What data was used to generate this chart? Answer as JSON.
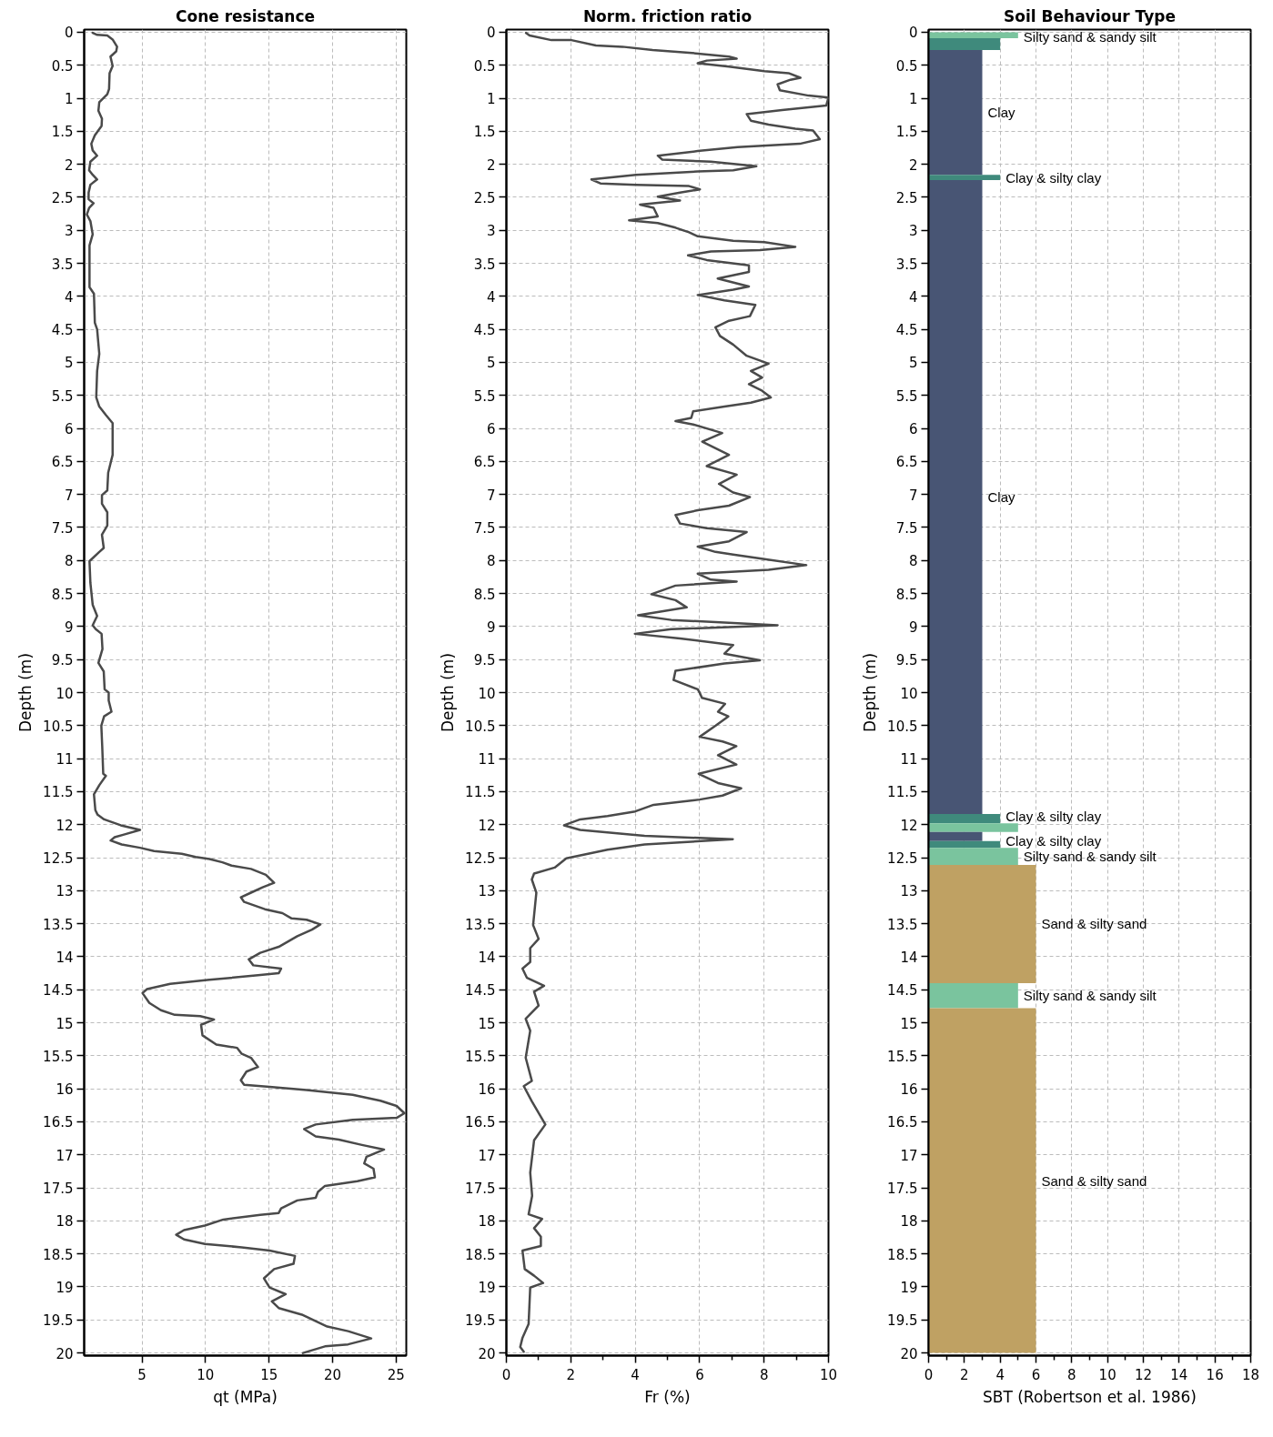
{
  "chart_data": [
    {
      "type": "line",
      "title": "Cone resistance",
      "xlabel": "qt (MPa)",
      "ylabel": "Depth (m)",
      "xlim": [
        0.45,
        25.8
      ],
      "xticks": [
        5,
        10,
        15,
        20,
        25
      ],
      "ylim": [
        20.04,
        -0.04
      ],
      "yticks": [
        0,
        0.5,
        1,
        1.5,
        2,
        2.5,
        3,
        3.5,
        4,
        4.5,
        5,
        5.5,
        6,
        6.5,
        7,
        7.5,
        8,
        8.5,
        9,
        9.5,
        10,
        10.5,
        11,
        11.5,
        12,
        12.5,
        13,
        13.5,
        14,
        14.5,
        15,
        15.5,
        16,
        16.5,
        17,
        17.5,
        18,
        18.5,
        19,
        19.5,
        20
      ],
      "grid": true,
      "series": [
        {
          "color": "#4a4a4a",
          "x": [
            1.12,
            1.47,
            2.27,
            2.69,
            3.04,
            2.97,
            2.52,
            2.69,
            2.45,
            2.41,
            2.27,
            1.64,
            1.57,
            1.85,
            1.82,
            1.29,
            1.01,
            1.12,
            1.47,
            0.94,
            0.84,
            1.12,
            1.47,
            0.94,
            0.8,
            0.8,
            1.19,
            0.84,
            0.66,
            0.94,
            1.12,
            0.87,
            0.87,
            1.22,
            1.29,
            1.47,
            1.64,
            1.47,
            1.4,
            1.64,
            2.17,
            2.69,
            2.69,
            2.34,
            2.27,
            1.85,
            1.85,
            2.27,
            2.27,
            1.85,
            1.99,
            1.64,
            0.87,
            0.94,
            1.12,
            1.47,
            1.12,
            1.36,
            1.82,
            1.89,
            1.57,
            1.99,
            2.06,
            2.38,
            2.38,
            2.6,
            2.02,
            1.8,
            1.87,
            1.95,
            2.16,
            1.65,
            1.22,
            1.33,
            1.51,
            2.02,
            3.33,
            4.85,
            3.58,
            2.85,
            2.53,
            3.4,
            4.85,
            5.95,
            8.13,
            9.22,
            10.31,
            11.33,
            12.05,
            13.58,
            14.75,
            15.4,
            14.49,
            13.58,
            12.78,
            13.04,
            14.67,
            16.05,
            16.78,
            17.95,
            19.04,
            18.38,
            17.22,
            15.76,
            14.31,
            13.4,
            13.76,
            15.95,
            15.76,
            14.13,
            10.31,
            7.22,
            5.4,
            5.04,
            5.58,
            6.49,
            7.58,
            9.58,
            10.67,
            9.65,
            9.76,
            10.85,
            12.49,
            12.85,
            13.58,
            14.13,
            13.22,
            12.78,
            13.04,
            15.04,
            17.95,
            21.58,
            23.76,
            25.04,
            25.65,
            25.04,
            21.58,
            18.67,
            17.76,
            18.67,
            20.49,
            22.31,
            24.05,
            22.67,
            22.49,
            23.22,
            23.33,
            21.95,
            19.4,
            18.85,
            18.67,
            17.22,
            15.95,
            15.76,
            14.31,
            11.4,
            9.95,
            8.31,
            7.69,
            8.31,
            9.95,
            12.85,
            15.04,
            17.04,
            16.93,
            15.4,
            14.6,
            15.04,
            16.31,
            15.22,
            15.76,
            17.58,
            19.58,
            21.22,
            23.04,
            21.22,
            19.4,
            17.67
          ],
          "values": [
            0.01,
            0.04,
            0.05,
            0.11,
            0.22,
            0.29,
            0.37,
            0.51,
            0.62,
            0.86,
            0.94,
            1.06,
            1.19,
            1.31,
            1.42,
            1.56,
            1.69,
            1.79,
            1.87,
            1.96,
            2.09,
            2.16,
            2.23,
            2.31,
            2.43,
            2.53,
            2.59,
            2.66,
            2.76,
            2.86,
            3.06,
            3.23,
            3.86,
            3.96,
            4.4,
            4.5,
            4.87,
            5.13,
            5.53,
            5.67,
            5.8,
            5.92,
            6.4,
            6.67,
            6.94,
            7.01,
            7.14,
            7.27,
            7.47,
            7.61,
            7.81,
            7.87,
            8.01,
            8.34,
            8.67,
            8.84,
            8.98,
            9.04,
            9.11,
            9.34,
            9.55,
            9.68,
            9.95,
            10.0,
            10.12,
            10.29,
            10.36,
            10.5,
            10.81,
            11.23,
            11.26,
            11.4,
            11.54,
            11.78,
            11.85,
            11.92,
            12.01,
            12.08,
            12.15,
            12.19,
            12.24,
            12.3,
            12.35,
            12.4,
            12.44,
            12.49,
            12.52,
            12.57,
            12.62,
            12.67,
            12.76,
            12.88,
            12.95,
            13.03,
            13.1,
            13.17,
            13.28,
            13.34,
            13.42,
            13.44,
            13.51,
            13.59,
            13.69,
            13.85,
            13.94,
            14.04,
            14.13,
            14.18,
            14.25,
            14.28,
            14.35,
            14.41,
            14.49,
            14.55,
            14.7,
            14.81,
            14.88,
            14.9,
            14.95,
            15.03,
            15.19,
            15.33,
            15.38,
            15.47,
            15.53,
            15.67,
            15.74,
            15.87,
            15.94,
            15.97,
            16.02,
            16.09,
            16.18,
            16.26,
            16.37,
            16.44,
            16.47,
            16.54,
            16.61,
            16.72,
            16.77,
            16.85,
            16.92,
            17.03,
            17.13,
            17.21,
            17.34,
            17.4,
            17.47,
            17.56,
            17.65,
            17.69,
            17.81,
            17.88,
            17.91,
            17.98,
            18.07,
            18.14,
            18.21,
            18.28,
            18.35,
            18.4,
            18.45,
            18.53,
            18.65,
            18.73,
            18.87,
            19.01,
            19.11,
            19.22,
            19.32,
            19.42,
            19.6,
            19.67,
            19.78,
            19.87,
            19.9,
            20.0
          ]
        }
      ]
    },
    {
      "type": "line",
      "title": "Norm. friction ratio",
      "xlabel": "Fr (%)",
      "ylabel": "Depth (m)",
      "xlim": [
        0,
        10
      ],
      "xticks": [
        0,
        {
          "value": 1,
          "label": null
        },
        2,
        {
          "value": 3,
          "label": null
        },
        4,
        {
          "value": 5,
          "label": null
        },
        6,
        {
          "value": 7,
          "label": null
        },
        8,
        {
          "value": 9,
          "label": null
        },
        10
      ],
      "ylim": [
        20.04,
        -0.04
      ],
      "yticks": [
        0,
        0.5,
        1,
        1.5,
        2,
        2.5,
        3,
        3.5,
        4,
        4.5,
        5,
        5.5,
        6,
        6.5,
        7,
        7.5,
        8,
        8.5,
        9,
        9.5,
        10,
        10.5,
        11,
        11.5,
        12,
        12.5,
        13,
        13.5,
        14,
        14.5,
        15,
        15.5,
        16,
        16.5,
        17,
        17.5,
        18,
        18.5,
        19,
        19.5,
        20
      ],
      "grid": true,
      "series": [
        {
          "color": "#4a4a4a",
          "x": [
            0.61,
            0.72,
            1.4,
            2.02,
            2.78,
            3.6,
            4.54,
            5.67,
            6.91,
            7.15,
            6.22,
            5.94,
            6.91,
            8.01,
            8.76,
            9.13,
            8.82,
            8.42,
            8.49,
            9.38,
            10.0,
            9.93,
            8.56,
            7.46,
            7.59,
            8.14,
            8.97,
            9.52,
            9.73,
            9.11,
            7.18,
            5.94,
            4.7,
            4.84,
            6.35,
            7.76,
            7.04,
            5.94,
            4.02,
            2.64,
            2.92,
            4.02,
            5.67,
            6.01,
            5.39,
            4.7,
            5.39,
            4.15,
            4.57,
            4.7,
            3.81,
            4.7,
            5.25,
            5.67,
            5.94,
            7.04,
            8.01,
            8.97,
            7.87,
            6.35,
            5.64,
            6.22,
            7.53,
            7.53,
            6.56,
            7.53,
            7.04,
            5.94,
            6.77,
            7.73,
            7.56,
            6.91,
            6.49,
            6.63,
            7.04,
            7.46,
            8.14,
            7.59,
            7.94,
            7.53,
            7.94,
            8.21,
            7.59,
            6.77,
            5.8,
            5.74,
            5.25,
            5.8,
            6.7,
            6.08,
            6.91,
            6.22,
            7.15,
            6.6,
            7.04,
            7.56,
            6.91,
            5.94,
            5.25,
            5.39,
            6.22,
            7.46,
            6.91,
            5.94,
            6.49,
            7.04,
            7.87,
            9.31,
            8.14,
            5.94,
            6.35,
            7.15,
            5.25,
            4.5,
            5.25,
            5.6,
            4.09,
            5.12,
            8.42,
            5.12,
            3.99,
            5.39,
            7.04,
            6.77,
            7.87,
            6.77,
            5.25,
            5.19,
            5.94,
            6.0,
            6.07,
            6.79,
            6.57,
            6.89,
            6.5,
            6.0,
            6.71,
            7.14,
            6.57,
            7.14,
            5.97,
            6.57,
            7.29,
            6.71,
            6.0,
            4.57,
            4.0,
            3.14,
            2.29,
            1.79,
            2.29,
            4.29,
            7.03,
            4.29,
            3.14,
            1.86,
            1.5,
            0.86,
            0.79,
            0.93,
            0.83,
            1.0,
            0.74,
            0.74,
            0.5,
            0.64,
            1.17,
            0.86,
            1.0,
            0.6,
            0.74,
            0.6,
            0.79,
            0.54,
            0.79,
            1.21,
            0.86,
            0.74,
            0.8,
            0.69,
            1.11,
            0.86,
            1.07,
            1.07,
            0.5,
            0.57,
            0.86,
            1.14,
            0.74,
            0.69,
            0.5,
            0.43,
            0.54
          ],
          "values": [
            0.01,
            0.05,
            0.12,
            0.12,
            0.2,
            0.22,
            0.27,
            0.31,
            0.37,
            0.4,
            0.43,
            0.47,
            0.52,
            0.59,
            0.62,
            0.69,
            0.72,
            0.79,
            0.88,
            0.96,
            0.99,
            1.11,
            1.18,
            1.24,
            1.34,
            1.4,
            1.46,
            1.49,
            1.62,
            1.69,
            1.74,
            1.8,
            1.87,
            1.93,
            1.96,
            2.03,
            2.09,
            2.11,
            2.16,
            2.23,
            2.29,
            2.31,
            2.33,
            2.38,
            2.43,
            2.49,
            2.55,
            2.61,
            2.66,
            2.79,
            2.85,
            2.89,
            2.96,
            3.03,
            3.09,
            3.16,
            3.18,
            3.25,
            3.3,
            3.32,
            3.38,
            3.45,
            3.53,
            3.63,
            3.73,
            3.85,
            3.9,
            3.98,
            4.06,
            4.13,
            4.3,
            4.37,
            4.47,
            4.6,
            4.73,
            4.9,
            5.02,
            5.13,
            5.23,
            5.33,
            5.43,
            5.53,
            5.61,
            5.67,
            5.74,
            5.84,
            5.89,
            5.94,
            6.07,
            6.2,
            6.4,
            6.57,
            6.7,
            6.84,
            6.97,
            7.04,
            7.17,
            7.24,
            7.31,
            7.44,
            7.51,
            7.57,
            7.71,
            7.79,
            7.87,
            7.91,
            7.97,
            8.07,
            8.14,
            8.2,
            8.29,
            8.32,
            8.38,
            8.51,
            8.6,
            8.71,
            8.83,
            8.9,
            8.98,
            9.04,
            9.11,
            9.18,
            9.28,
            9.41,
            9.51,
            9.56,
            9.67,
            9.81,
            9.95,
            10.0,
            10.08,
            10.17,
            10.29,
            10.36,
            10.5,
            10.67,
            10.74,
            10.81,
            10.95,
            11.09,
            11.23,
            11.37,
            11.45,
            11.56,
            11.62,
            11.7,
            11.8,
            11.87,
            11.92,
            12.01,
            12.08,
            12.17,
            12.22,
            12.3,
            12.38,
            12.51,
            12.65,
            12.74,
            12.83,
            13.03,
            13.52,
            13.73,
            13.87,
            14.08,
            14.18,
            14.32,
            14.44,
            14.53,
            14.74,
            14.94,
            15.12,
            15.53,
            15.88,
            15.96,
            16.19,
            16.54,
            16.78,
            17.27,
            17.62,
            17.9,
            17.97,
            18.11,
            18.24,
            18.38,
            18.45,
            18.73,
            18.83,
            18.94,
            19.01,
            19.56,
            19.77,
            19.91,
            19.98
          ]
        }
      ]
    },
    {
      "type": "histogram",
      "orientation": "horizontal",
      "title": "Soil Behaviour Type",
      "xlabel": "SBT (Robertson et al. 1986)",
      "ylabel": "Depth (m)",
      "xlim": [
        0,
        18
      ],
      "xticks": [
        0,
        {
          "value": 1,
          "label": null
        },
        2,
        {
          "value": 3,
          "label": null
        },
        4,
        {
          "value": 5,
          "label": null
        },
        6,
        {
          "value": 7,
          "label": null
        },
        8,
        {
          "value": 9,
          "label": null
        },
        10,
        {
          "value": 11,
          "label": null
        },
        12,
        {
          "value": 13,
          "label": null
        },
        14,
        {
          "value": 15,
          "label": null
        },
        16,
        {
          "value": 17,
          "label": null
        },
        18
      ],
      "ylim": [
        20.04,
        -0.04
      ],
      "yticks": [
        0,
        0.5,
        1,
        1.5,
        2,
        2.5,
        3,
        3.5,
        4,
        4.5,
        5,
        5.5,
        6,
        6.5,
        7,
        7.5,
        8,
        8.5,
        9,
        9.5,
        10,
        10.5,
        11,
        11.5,
        12,
        12.5,
        13,
        13.5,
        14,
        14.5,
        15,
        15.5,
        16,
        16.5,
        17,
        17.5,
        18,
        18.5,
        19,
        19.5,
        20
      ],
      "grid": true,
      "bins": [
        0,
        0.09,
        0.27,
        2.16,
        2.24,
        11.84,
        11.98,
        12.11,
        12.25,
        12.35,
        12.61,
        14.4,
        14.78,
        20
      ],
      "values": [
        5,
        4,
        3,
        4,
        3,
        4,
        5,
        3,
        4,
        5,
        6,
        5,
        6
      ],
      "colors": [
        "#7ac49e",
        "#3f8a7c",
        "#485574",
        "#3f8a7c",
        "#485574",
        "#3f8a7c",
        "#7ac49e",
        "#485574",
        "#3f8a7c",
        "#7ac49e",
        "#bfa163",
        "#7ac49e",
        "#bfa163"
      ],
      "value_labels": [
        "Silty sand & sandy silt",
        null,
        "Clay",
        "Clay & silty clay",
        "Clay",
        "Clay & silty clay",
        null,
        null,
        "Clay & silty clay",
        "Silty sand & sandy silt",
        "Sand & silty sand",
        "Silty sand & sandy silt",
        "Sand & silty sand"
      ]
    }
  ]
}
